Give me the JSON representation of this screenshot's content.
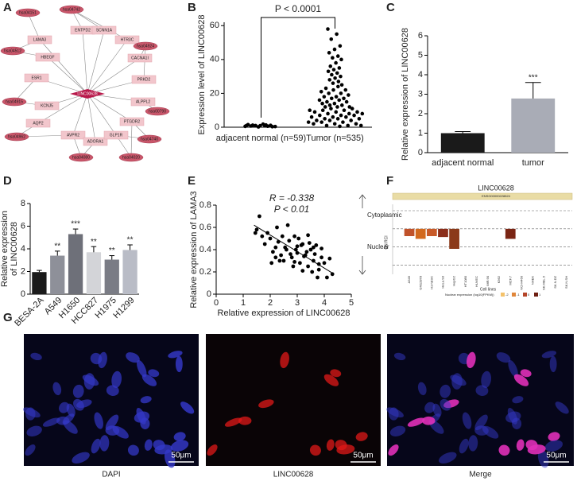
{
  "panels": [
    "A",
    "B",
    "C",
    "D",
    "E",
    "F",
    "G"
  ],
  "network": {
    "center": "LINC00628",
    "nodes": [
      {
        "label": "hsa04151",
        "kind": "pathway"
      },
      {
        "label": "hsa04742",
        "kind": "pathway"
      },
      {
        "label": "LAMA3",
        "kind": "gene"
      },
      {
        "label": "ENTPD2",
        "kind": "gene"
      },
      {
        "label": "SCNN1A",
        "kind": "gene"
      },
      {
        "label": "HTR3C",
        "kind": "gene"
      },
      {
        "label": "hsa04512",
        "kind": "pathway"
      },
      {
        "label": "HBEGF",
        "kind": "gene"
      },
      {
        "label": "hsa04924",
        "kind": "pathway"
      },
      {
        "label": "CACNA1I",
        "kind": "gene"
      },
      {
        "label": "ESR1",
        "kind": "gene"
      },
      {
        "label": "PRKD2",
        "kind": "gene"
      },
      {
        "label": "hsa04915",
        "kind": "pathway"
      },
      {
        "label": "KCNJ5",
        "kind": "gene"
      },
      {
        "label": "ALPPL2",
        "kind": "gene"
      },
      {
        "label": "hsa00790",
        "kind": "pathway"
      },
      {
        "label": "AQP2",
        "kind": "gene"
      },
      {
        "label": "PTGDR2",
        "kind": "gene"
      },
      {
        "label": "hsa04962",
        "kind": "pathway"
      },
      {
        "label": "AVPR2",
        "kind": "gene"
      },
      {
        "label": "ADORA1",
        "kind": "gene"
      },
      {
        "label": "GLP1R",
        "kind": "gene"
      },
      {
        "label": "hsa04740",
        "kind": "pathway"
      },
      {
        "label": "hsa04080",
        "kind": "pathway"
      },
      {
        "label": "hsa04020",
        "kind": "pathway"
      }
    ]
  },
  "chart_data": [
    {
      "type": "strip",
      "ylabel": "Expression level of LINC00628",
      "categories": [
        "adjacent normal (n=59)",
        "Tumor (n=535)"
      ],
      "series": [
        {
          "color": "#000000",
          "values": [
            0.5,
            0.8,
            1.2,
            0.3,
            0.9,
            1.5,
            0.6,
            1.0,
            0.4,
            1.8,
            0.7,
            1.1,
            0.2,
            0.9,
            1.3
          ]
        },
        {
          "color": "#000000",
          "values": [
            58,
            55,
            52,
            48,
            46,
            44,
            42,
            41,
            40,
            38,
            36,
            35,
            34,
            33,
            32,
            31,
            30,
            29,
            28,
            27,
            26,
            25,
            24,
            23,
            22,
            22,
            21,
            20,
            20,
            19,
            18,
            18,
            17,
            17,
            16,
            16,
            15,
            15,
            14,
            14,
            13,
            13,
            12,
            12,
            12,
            11,
            11,
            10,
            10,
            10,
            9,
            9,
            9,
            8,
            8,
            8,
            7,
            7,
            7,
            6,
            6,
            6,
            5,
            5,
            5,
            4,
            4,
            4,
            3,
            3,
            3,
            2,
            2,
            2,
            1,
            1,
            1,
            0.5
          ]
        }
      ],
      "annotation": "P < 0.0001",
      "ylim": [
        0,
        62
      ],
      "yticks": [
        0,
        20,
        40,
        60
      ]
    },
    {
      "type": "bar",
      "ylabel": "Relative expression of LINC00628",
      "categories": [
        "adjacent normal",
        "tumor"
      ],
      "values": [
        1.0,
        2.78
      ],
      "errors": [
        0.08,
        0.82
      ],
      "colors": [
        "#1a1a1a",
        "#a9acb6"
      ],
      "significance": [
        null,
        "***"
      ],
      "ylim": [
        0,
        6
      ],
      "yticks": [
        0,
        1,
        2,
        3,
        4,
        5,
        6
      ]
    },
    {
      "type": "bar",
      "ylabel": [
        "Relative expression",
        "of LINC00628"
      ],
      "categories": [
        "BESA-2A",
        "A549",
        "H1650",
        "HCC827",
        "H1975",
        "H1299"
      ],
      "values": [
        1.95,
        3.4,
        5.3,
        3.7,
        3.05,
        3.9
      ],
      "errors": [
        0.15,
        0.4,
        0.45,
        0.5,
        0.35,
        0.45
      ],
      "colors": [
        "#1a1a1a",
        "#8e9099",
        "#6e7079",
        "#d3d4d8",
        "#7a7c85",
        "#b9bcc6"
      ],
      "significance": [
        null,
        "**",
        "***",
        "**",
        "**",
        "**"
      ],
      "ylim": [
        0,
        8
      ],
      "yticks": [
        0,
        2,
        4,
        6,
        8
      ]
    },
    {
      "type": "scatter",
      "xlabel": "Relative expression of LINC00628",
      "ylabel": "Relative expression of LAMA3",
      "x": [
        1.5,
        1.7,
        1.8,
        2.0,
        2.1,
        2.2,
        2.3,
        2.4,
        2.5,
        2.6,
        2.7,
        2.8,
        2.9,
        3.0,
        3.1,
        3.2,
        3.3,
        3.4,
        3.5,
        3.6,
        3.7,
        3.8,
        3.9,
        4.0,
        4.1,
        4.3,
        1.6,
        1.9,
        2.05,
        2.25,
        2.45,
        2.55,
        2.75,
        2.85,
        2.95,
        3.05,
        3.15,
        3.25,
        3.35,
        3.45,
        3.55,
        3.65,
        3.75,
        3.9,
        4.2,
        1.45,
        2.35,
        2.65,
        3.0,
        3.4,
        3.8,
        2.2,
        2.9,
        3.2,
        3.6
      ],
      "values": [
        0.58,
        0.52,
        0.45,
        0.5,
        0.38,
        0.42,
        0.47,
        0.35,
        0.3,
        0.4,
        0.48,
        0.33,
        0.52,
        0.37,
        0.28,
        0.45,
        0.35,
        0.25,
        0.4,
        0.3,
        0.44,
        0.22,
        0.33,
        0.28,
        0.15,
        0.18,
        0.7,
        0.55,
        0.28,
        0.6,
        0.52,
        0.42,
        0.36,
        0.25,
        0.4,
        0.5,
        0.44,
        0.34,
        0.38,
        0.46,
        0.2,
        0.36,
        0.15,
        0.41,
        0.32,
        0.55,
        0.3,
        0.62,
        0.43,
        0.53,
        0.27,
        0.33,
        0.29,
        0.21,
        0.42
      ],
      "color": "#000000",
      "trendline": {
        "x": [
          1.4,
          4.3
        ],
        "y": [
          0.62,
          0.19
        ]
      },
      "annotations": [
        "R = -0.338",
        "P < 0.01"
      ],
      "xlim": [
        0,
        5
      ],
      "xticks": [
        0,
        1,
        2,
        3,
        4,
        5
      ],
      "ylim": [
        0,
        0.8
      ],
      "yticks": [
        0,
        0.2,
        0.4,
        0.6,
        0.8
      ]
    },
    {
      "type": "rcibar",
      "title": "LINC00628",
      "subtitle": "ENSG00000228824",
      "ylabel": "CN RCI",
      "xlabel": "Cell lines",
      "compartments": [
        "Cytoplasmic",
        "Nuclear"
      ],
      "categories": [
        "A549",
        "GM12878",
        "H1-hESC",
        "HeLa.S3",
        "HepG2",
        "HT1080",
        "HUVEC",
        "IMR.90",
        "K562",
        "MCF.7",
        "NCI-H460",
        "NHEK",
        "SK.MEL.5",
        "SK.N.DZ",
        "SK.N.SH"
      ],
      "values": [
        -0.4,
        -0.55,
        -0.4,
        -0.45,
        -1.1,
        null,
        null,
        null,
        null,
        -0.55,
        null,
        null,
        null,
        null,
        null
      ],
      "colors": [
        "#c0522a",
        "#d2691e",
        "#c85a28",
        "#8b2e1a",
        "#8b3a1a",
        null,
        null,
        null,
        null,
        "#7a2514",
        null,
        null,
        null,
        null,
        null
      ],
      "ylim": [
        -2.5,
        1
      ],
      "ref_lines": [
        1,
        0,
        -1,
        -2
      ],
      "legend": {
        "title": "Nuclear expression (log10(FPKM))",
        "ticks": [
          -2,
          -1,
          0,
          1
        ],
        "colors": [
          "#f4c26b",
          "#e0863a",
          "#b5462a",
          "#6e1f12"
        ]
      }
    }
  ],
  "microscopy": [
    {
      "label": "DAPI",
      "scale": "50μm"
    },
    {
      "label": "LINC00628",
      "scale": "50μm"
    },
    {
      "label": "Merge",
      "scale": "50μm"
    }
  ]
}
